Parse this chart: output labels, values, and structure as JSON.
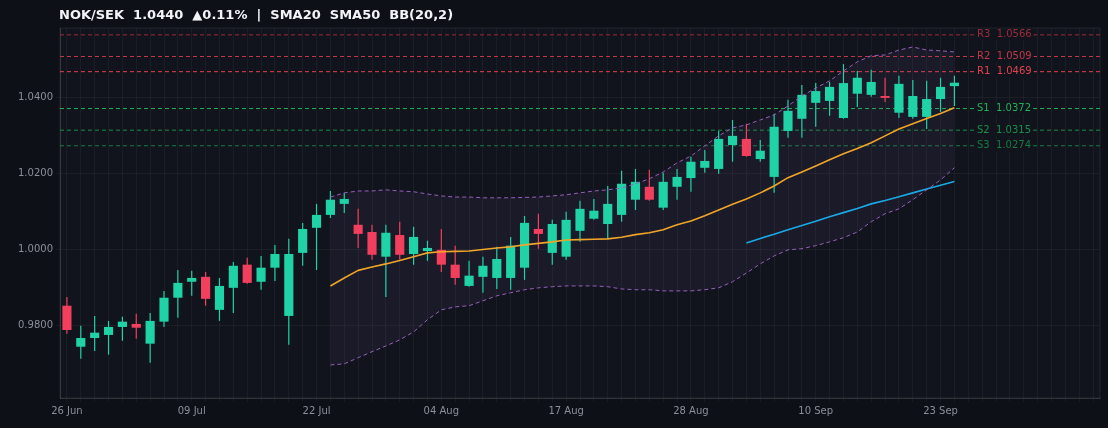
{
  "chart_data": {
    "type": "candlestick",
    "title": "NOK/SEK  1.0440  ▲0.11%  |  SMA20  SMA50  BB(20,2)",
    "categories": [
      "26 Jun",
      null,
      null,
      null,
      null,
      null,
      null,
      null,
      null,
      "09 Jul",
      null,
      null,
      null,
      null,
      null,
      null,
      null,
      null,
      "22 Jul",
      null,
      null,
      null,
      null,
      null,
      null,
      null,
      null,
      "04 Aug",
      null,
      null,
      null,
      null,
      null,
      null,
      null,
      null,
      "17 Aug",
      null,
      null,
      null,
      null,
      null,
      null,
      null,
      null,
      "28 Aug",
      null,
      null,
      null,
      null,
      null,
      null,
      null,
      null,
      "10 Sep",
      null,
      null,
      null,
      null,
      null,
      null,
      null,
      null,
      "23 Sep",
      null,
      null,
      null,
      null,
      null,
      null,
      null,
      null,
      null,
      null,
      null
    ],
    "ohlc": [
      [
        0.9853,
        0.9876,
        0.9779,
        0.9789
      ],
      [
        0.9745,
        0.98,
        0.9713,
        0.9768
      ],
      [
        0.9768,
        0.9826,
        0.9734,
        0.9782
      ],
      [
        0.9776,
        0.9813,
        0.9724,
        0.9797
      ],
      [
        0.9797,
        0.9824,
        0.9761,
        0.9811
      ],
      [
        0.9805,
        0.9832,
        0.9766,
        0.9795
      ],
      [
        0.9753,
        0.9834,
        0.9703,
        0.9813
      ],
      [
        0.9811,
        0.9892,
        0.9797,
        0.9874
      ],
      [
        0.9874,
        0.9947,
        0.9821,
        0.9913
      ],
      [
        0.9916,
        0.9945,
        0.9879,
        0.9926
      ],
      [
        0.9929,
        0.9942,
        0.9853,
        0.9871
      ],
      [
        0.9842,
        0.9926,
        0.9813,
        0.9905
      ],
      [
        0.99,
        0.9968,
        0.9834,
        0.9958
      ],
      [
        0.9961,
        0.9979,
        0.9911,
        0.9913
      ],
      [
        0.9916,
        0.9984,
        0.9895,
        0.9953
      ],
      [
        0.9953,
        1.0013,
        0.9918,
        0.9989
      ],
      [
        0.9826,
        1.0029,
        0.975,
        0.9989
      ],
      [
        0.9992,
        1.0071,
        0.9958,
        1.0055
      ],
      [
        1.0058,
        1.0121,
        0.9947,
        1.0092
      ],
      [
        1.0092,
        1.0155,
        1.0084,
        1.0132
      ],
      [
        1.0121,
        1.015,
        1.0097,
        1.0134
      ],
      [
        1.0066,
        1.0108,
        1.0005,
        1.0042
      ],
      [
        1.0047,
        1.0066,
        0.9974,
        0.9987
      ],
      [
        0.9982,
        1.0066,
        0.9876,
        1.0045
      ],
      [
        1.0039,
        1.0074,
        0.9974,
        0.9987
      ],
      [
        0.9989,
        1.0061,
        0.9961,
        1.0034
      ],
      [
        0.9997,
        1.0024,
        0.9971,
        1.0005
      ],
      [
        1.0,
        1.0055,
        0.9942,
        0.9961
      ],
      [
        0.9961,
        1.0011,
        0.9908,
        0.9926
      ],
      [
        0.9905,
        0.9971,
        0.9903,
        0.9932
      ],
      [
        0.9929,
        0.9982,
        0.9887,
        0.9958
      ],
      [
        0.9926,
        1.0008,
        0.9897,
        0.9976
      ],
      [
        0.9926,
        1.0034,
        0.9895,
        1.0011
      ],
      [
        0.9953,
        1.0089,
        0.9921,
        1.0071
      ],
      [
        1.0055,
        1.0095,
        1.0003,
        1.0042
      ],
      [
        0.9992,
        1.0079,
        0.9961,
        1.0068
      ],
      [
        0.9982,
        1.01,
        0.9974,
        1.0079
      ],
      [
        1.005,
        1.0129,
        1.0021,
        1.0108
      ],
      [
        1.0082,
        1.0134,
        1.0079,
        1.0103
      ],
      [
        1.0068,
        1.0168,
        1.0029,
        1.0121
      ],
      [
        1.0092,
        1.0208,
        1.0074,
        1.0174
      ],
      [
        1.0132,
        1.0213,
        1.0105,
        1.0179
      ],
      [
        1.0166,
        1.0211,
        1.0129,
        1.0132
      ],
      [
        1.0111,
        1.0203,
        1.0105,
        1.0179
      ],
      [
        1.0166,
        1.0213,
        1.0132,
        1.0192
      ],
      [
        1.0189,
        1.0245,
        1.0153,
        1.0232
      ],
      [
        1.0216,
        1.0263,
        1.0203,
        1.0234
      ],
      [
        1.0213,
        1.0313,
        1.02,
        1.0292
      ],
      [
        1.0276,
        1.0342,
        1.0232,
        1.03
      ],
      [
        1.0292,
        1.0332,
        1.0245,
        1.0247
      ],
      [
        1.0239,
        1.0289,
        1.0232,
        1.0261
      ],
      [
        1.0192,
        1.0358,
        1.015,
        1.0324
      ],
      [
        1.0313,
        1.0395,
        1.0295,
        1.0366
      ],
      [
        1.0345,
        1.0434,
        1.0295,
        1.0408
      ],
      [
        1.0387,
        1.0439,
        1.0324,
        1.0418
      ],
      [
        1.0392,
        1.0442,
        1.0353,
        1.0429
      ],
      [
        1.0347,
        1.0489,
        1.0345,
        1.0439
      ],
      [
        1.0411,
        1.0471,
        1.0376,
        1.0453
      ],
      [
        1.0408,
        1.0474,
        1.0403,
        1.0442
      ],
      [
        1.0405,
        1.0453,
        1.0389,
        1.04
      ],
      [
        1.0361,
        1.0458,
        1.0347,
        1.0437
      ],
      [
        1.035,
        1.0447,
        1.0345,
        1.0405
      ],
      [
        1.035,
        1.0445,
        1.0318,
        1.0397
      ],
      [
        1.0397,
        1.0453,
        1.0363,
        1.0429
      ],
      [
        1.0431,
        1.0458,
        1.0379,
        1.044
      ],
      null,
      null,
      null,
      null,
      null,
      null,
      null,
      null,
      null,
      null
    ],
    "colors": [
      "#f23f5e",
      "#1fd3a6",
      "#1fd3a6",
      "#1fd3a6",
      "#1fd3a6",
      "#f23f5e",
      "#1fd3a6",
      "#1fd3a6",
      "#1fd3a6",
      "#1fd3a6",
      "#f23f5e",
      "#1fd3a6",
      "#1fd3a6",
      "#f23f5e",
      "#1fd3a6",
      "#1fd3a6",
      "#1fd3a6",
      "#1fd3a6",
      "#1fd3a6",
      "#1fd3a6",
      "#1fd3a6",
      "#f23f5e",
      "#f23f5e",
      "#1fd3a6",
      "#f23f5e",
      "#1fd3a6",
      "#1fd3a6",
      "#f23f5e",
      "#f23f5e",
      "#1fd3a6",
      "#1fd3a6",
      "#1fd3a6",
      "#1fd3a6",
      "#1fd3a6",
      "#f23f5e",
      "#1fd3a6",
      "#1fd3a6",
      "#1fd3a6",
      "#1fd3a6",
      "#1fd3a6",
      "#1fd3a6",
      "#1fd3a6",
      "#f23f5e",
      "#1fd3a6",
      "#1fd3a6",
      "#1fd3a6",
      "#1fd3a6",
      "#1fd3a6",
      "#1fd3a6",
      "#f23f5e",
      "#1fd3a6",
      "#1fd3a6",
      "#1fd3a6",
      "#1fd3a6",
      "#1fd3a6",
      "#1fd3a6",
      "#1fd3a6",
      "#1fd3a6",
      "#1fd3a6",
      "#f23f5e",
      "#1fd3a6",
      "#1fd3a6",
      "#1fd3a6",
      "#1fd3a6",
      "#1fd3a6",
      null,
      null,
      null,
      null,
      null,
      null,
      null,
      null,
      null,
      null
    ],
    "series": [
      {
        "type": "line",
        "color": "#f0a52a",
        "values": [
          null,
          null,
          null,
          null,
          null,
          null,
          null,
          null,
          null,
          null,
          null,
          null,
          null,
          null,
          null,
          null,
          null,
          null,
          null,
          0.9905,
          0.9926,
          0.9946,
          0.9955,
          0.9963,
          0.9972,
          0.9982,
          0.9992,
          0.9995,
          0.9996,
          0.9997,
          1.0001,
          1.0005,
          1.0008,
          1.0013,
          1.0017,
          1.0021,
          1.0026,
          1.0027,
          1.0028,
          1.0029,
          1.0033,
          1.004,
          1.0045,
          1.0053,
          1.0066,
          1.0076,
          1.009,
          1.0105,
          1.012,
          1.0134,
          1.015,
          1.0168,
          1.019,
          1.0205,
          1.0221,
          1.0237,
          1.0253,
          1.0267,
          1.0282,
          1.03,
          1.0318,
          1.0332,
          1.0346,
          1.0359,
          1.0374,
          null,
          null,
          null,
          null,
          null,
          null,
          null,
          null,
          null,
          null
        ],
        "upper": [
          null,
          null,
          null,
          null,
          null,
          null,
          null,
          null,
          null,
          null,
          null,
          null,
          null,
          null,
          null,
          null,
          null,
          null,
          null,
          1.0139,
          1.015,
          1.0155,
          1.0155,
          1.0158,
          1.0155,
          1.0153,
          1.0147,
          1.0142,
          1.0139,
          1.0139,
          1.0137,
          1.0137,
          1.0137,
          1.0138,
          1.0139,
          1.0142,
          1.0145,
          1.015,
          1.0155,
          1.0158,
          1.0163,
          1.0174,
          1.0187,
          1.0205,
          1.0229,
          1.0247,
          1.0274,
          1.03,
          1.0321,
          1.0329,
          1.0342,
          1.0355,
          1.0379,
          1.0405,
          1.0426,
          1.0445,
          1.0471,
          1.0495,
          1.0511,
          1.0513,
          1.0526,
          1.0534,
          1.0526,
          1.0524,
          1.0521,
          null,
          null,
          null,
          null,
          null,
          null,
          null,
          null,
          null,
          null
        ],
        "lower": [
          null,
          null,
          null,
          null,
          null,
          null,
          null,
          null,
          null,
          null,
          null,
          null,
          null,
          null,
          null,
          null,
          null,
          null,
          null,
          0.9697,
          0.97,
          0.9716,
          0.9732,
          0.9747,
          0.9763,
          0.9784,
          0.9816,
          0.9842,
          0.985,
          0.9853,
          0.9866,
          0.9879,
          0.9887,
          0.9895,
          0.99,
          0.9903,
          0.9905,
          0.9905,
          0.9905,
          0.9903,
          0.9897,
          0.9895,
          0.9895,
          0.9892,
          0.9892,
          0.9892,
          0.9895,
          0.99,
          0.9916,
          0.9939,
          0.9963,
          0.9984,
          1.0,
          1.0003,
          1.0011,
          1.0021,
          1.0032,
          1.0047,
          1.0074,
          1.0095,
          1.0108,
          1.0132,
          1.0158,
          1.0184,
          1.0216,
          null,
          null,
          null,
          null,
          null,
          null,
          null,
          null,
          null,
          null
        ]
      },
      {
        "type": "line",
        "color": "#965fbe",
        "line_style": "dashed",
        "values": [
          null,
          null,
          null,
          null,
          null,
          null,
          null,
          null,
          null,
          null,
          null,
          null,
          null,
          null,
          null,
          null,
          null,
          null,
          null,
          1.0139,
          1.015,
          1.0155,
          1.0155,
          1.0158,
          1.0155,
          1.0153,
          1.0147,
          1.0142,
          1.0139,
          1.0139,
          1.0137,
          1.0137,
          1.0137,
          1.0138,
          1.0139,
          1.0142,
          1.0145,
          1.015,
          1.0155,
          1.0158,
          1.0163,
          1.0174,
          1.0187,
          1.0205,
          1.0229,
          1.0247,
          1.0274,
          1.03,
          1.0321,
          1.0329,
          1.0342,
          1.0355,
          1.0379,
          1.0405,
          1.0426,
          1.0445,
          1.0471,
          1.0495,
          1.0511,
          1.0513,
          1.0526,
          1.0534,
          1.0526,
          1.0524,
          1.0521,
          null,
          null,
          null,
          null,
          null,
          null,
          null,
          null,
          null,
          null
        ]
      },
      {
        "type": "line",
        "color": "#965fbe",
        "line_style": "dashed",
        "values": [
          null,
          null,
          null,
          null,
          null,
          null,
          null,
          null,
          null,
          null,
          null,
          null,
          null,
          null,
          null,
          null,
          null,
          null,
          null,
          0.9697,
          0.97,
          0.9716,
          0.9732,
          0.9747,
          0.9763,
          0.9784,
          0.9816,
          0.9842,
          0.985,
          0.9853,
          0.9866,
          0.9879,
          0.9887,
          0.9895,
          0.99,
          0.9903,
          0.9905,
          0.9905,
          0.9905,
          0.9903,
          0.9897,
          0.9895,
          0.9895,
          0.9892,
          0.9892,
          0.9892,
          0.9895,
          0.99,
          0.9916,
          0.9939,
          0.9963,
          0.9984,
          1.0,
          1.0003,
          1.0011,
          1.0021,
          1.0032,
          1.0047,
          1.0074,
          1.0095,
          1.0108,
          1.0132,
          1.0158,
          1.0184,
          1.0216,
          null,
          null,
          null,
          null,
          null,
          null,
          null,
          null,
          null,
          null
        ]
      },
      {
        "type": "line",
        "color": "#1aa9e6",
        "values": [
          null,
          null,
          null,
          null,
          null,
          null,
          null,
          null,
          null,
          null,
          null,
          null,
          null,
          null,
          null,
          null,
          null,
          null,
          null,
          null,
          null,
          null,
          null,
          null,
          null,
          null,
          null,
          null,
          null,
          null,
          null,
          null,
          null,
          null,
          null,
          null,
          null,
          null,
          null,
          null,
          null,
          null,
          null,
          null,
          null,
          null,
          null,
          null,
          null,
          1.0018,
          1.003,
          1.0041,
          1.0053,
          1.0064,
          1.0075,
          1.0087,
          1.0098,
          1.0109,
          1.0121,
          1.013,
          1.014,
          1.015,
          1.016,
          1.017,
          1.018,
          null,
          null,
          null,
          null,
          null,
          null,
          null,
          null,
          null,
          null
        ]
      }
    ],
    "ylim": [
      0.961,
      1.0584
    ],
    "yticks": [
      {
        "value": 0.98,
        "label": "0.9800"
      },
      {
        "value": 1.0,
        "label": "1.0000"
      },
      {
        "value": 1.02,
        "label": "1.0200"
      },
      {
        "value": 1.04,
        "label": "1.0400"
      }
    ],
    "ref_lines": [
      {
        "axis": "y",
        "value": 1.0566,
        "label": "R3  1.0566",
        "color": "#9b2c3a",
        "line_style": "dashed"
      },
      {
        "axis": "y",
        "value": 1.0509,
        "label": "R2  1.0509",
        "color": "#c0394a",
        "line_style": "dashed"
      },
      {
        "axis": "y",
        "value": 1.0469,
        "label": "R1  1.0469",
        "color": "#e0434f",
        "line_style": "dashed"
      },
      {
        "axis": "y",
        "value": 1.0372,
        "label": "S1  1.0372",
        "color": "#22b35a",
        "line_style": "dashed"
      },
      {
        "axis": "y",
        "value": 1.0315,
        "label": "S2  1.0315",
        "color": "#1c8f48",
        "line_style": "dashed"
      },
      {
        "axis": "y",
        "value": 1.0274,
        "label": "S3  1.0274",
        "color": "#1a7a40",
        "line_style": "dashed"
      }
    ],
    "grid": true
  }
}
